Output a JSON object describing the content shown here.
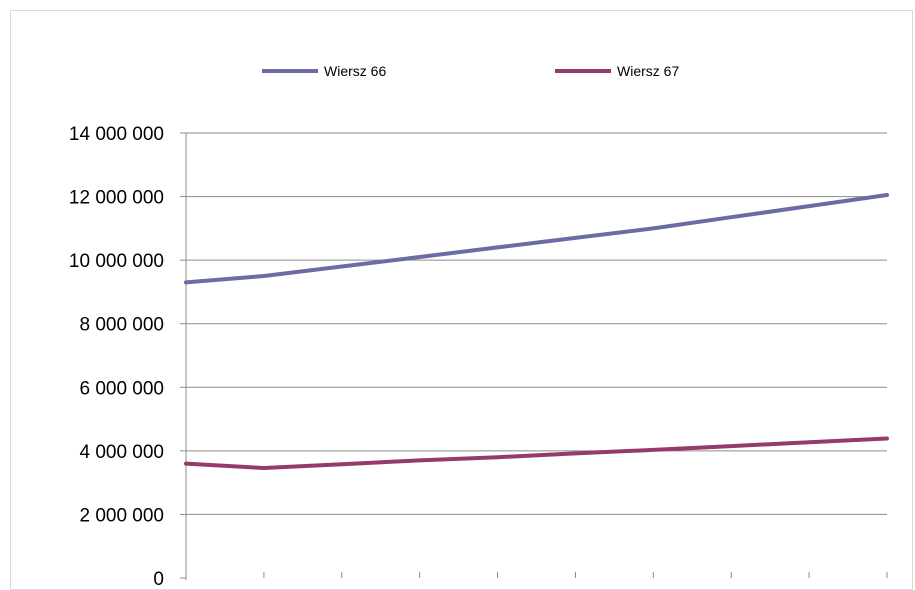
{
  "chart_data": {
    "type": "line",
    "title": "",
    "xlabel": "",
    "ylabel": "",
    "ylim": [
      0,
      14000000
    ],
    "yticks": [
      0,
      2000000,
      4000000,
      6000000,
      8000000,
      10000000,
      12000000,
      14000000
    ],
    "ytick_labels": [
      "0",
      "2 000 000",
      "4 000 000",
      "6 000 000",
      "8 000 000",
      "10 000 000",
      "12 000 000",
      "14 000 000"
    ],
    "x_points": 10,
    "grid": true,
    "legend_position": "top",
    "series": [
      {
        "name": "Wiersz 66",
        "color": "#6b6ba5",
        "values": [
          9300000,
          9500000,
          9800000,
          10100000,
          10400000,
          10700000,
          11000000,
          11350000,
          11700000,
          12050000
        ]
      },
      {
        "name": "Wiersz 67",
        "color": "#953a6b",
        "values": [
          3600000,
          3460000,
          3580000,
          3700000,
          3800000,
          3920000,
          4030000,
          4150000,
          4270000,
          4390000
        ]
      }
    ]
  }
}
